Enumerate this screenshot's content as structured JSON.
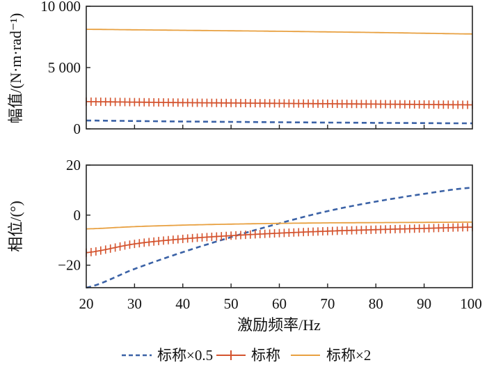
{
  "chart_data": [
    {
      "type": "line",
      "name": "amplitude",
      "ylabel": "幅值/(N·m·rad⁻¹)",
      "xlim": [
        20,
        100
      ],
      "ylim": [
        0,
        10000
      ],
      "yticks": [
        0,
        5000,
        10000
      ],
      "ytick_labels": [
        "0",
        "5 000",
        "10 000"
      ],
      "xticks": [
        20,
        30,
        40,
        50,
        60,
        70,
        80,
        90,
        100
      ],
      "grid": false,
      "series": [
        {
          "name": "标称×0.5",
          "color": "#3b62a6",
          "style": "dashed",
          "x": [
            20,
            30,
            40,
            50,
            60,
            70,
            80,
            90,
            100
          ],
          "values": [
            680,
            640,
            600,
            570,
            540,
            515,
            490,
            470,
            450
          ]
        },
        {
          "name": "标称",
          "color": "#d4532e",
          "style": "solid-plus",
          "x": [
            20,
            30,
            40,
            50,
            60,
            70,
            80,
            90,
            100
          ],
          "values": [
            2220,
            2180,
            2140,
            2110,
            2080,
            2050,
            2020,
            1990,
            1960
          ]
        },
        {
          "name": "标称×2",
          "color": "#e8a040",
          "style": "solid",
          "x": [
            20,
            30,
            40,
            50,
            60,
            70,
            80,
            90,
            100
          ],
          "values": [
            8120,
            8080,
            8040,
            8000,
            7960,
            7910,
            7860,
            7800,
            7740
          ]
        }
      ]
    },
    {
      "type": "line",
      "name": "phase",
      "ylabel": "相位/(°)",
      "xlabel": "激励频率/Hz",
      "xlim": [
        20,
        100
      ],
      "ylim": [
        -29,
        20
      ],
      "yticks": [
        -20,
        0,
        20
      ],
      "ytick_labels": [
        "−20",
        "0",
        "20"
      ],
      "xticks": [
        20,
        30,
        40,
        50,
        60,
        70,
        80,
        90,
        100
      ],
      "xtick_labels": [
        "20",
        "30",
        "40",
        "50",
        "60",
        "70",
        "80",
        "90",
        "100"
      ],
      "grid": false,
      "series": [
        {
          "name": "标称×0.5",
          "color": "#3b62a6",
          "style": "dashed",
          "x": [
            20,
            30,
            40,
            50,
            60,
            70,
            80,
            90,
            100
          ],
          "values": [
            -29,
            -21.5,
            -14.8,
            -8.8,
            -3.3,
            1.6,
            5.4,
            8.5,
            11
          ]
        },
        {
          "name": "标称",
          "color": "#d4532e",
          "style": "solid-plus",
          "x": [
            20,
            30,
            40,
            50,
            60,
            70,
            80,
            90,
            100
          ],
          "values": [
            -15,
            -11.5,
            -9.5,
            -8.2,
            -7.2,
            -6.4,
            -5.8,
            -5.3,
            -4.8
          ]
        },
        {
          "name": "标称×2",
          "color": "#e8a040",
          "style": "solid",
          "x": [
            20,
            30,
            40,
            50,
            60,
            70,
            80,
            90,
            100
          ],
          "values": [
            -5.5,
            -4.6,
            -4.0,
            -3.6,
            -3.3,
            -3.1,
            -3.0,
            -2.9,
            -2.8
          ]
        }
      ]
    }
  ],
  "legend": {
    "placement": "bottom",
    "items": [
      {
        "label": "标称×0.5",
        "color": "#3b62a6",
        "style": "dashed"
      },
      {
        "label": "标称",
        "color": "#d4532e",
        "style": "solid-plus"
      },
      {
        "label": "标称×2",
        "color": "#e8a040",
        "style": "solid"
      }
    ]
  }
}
